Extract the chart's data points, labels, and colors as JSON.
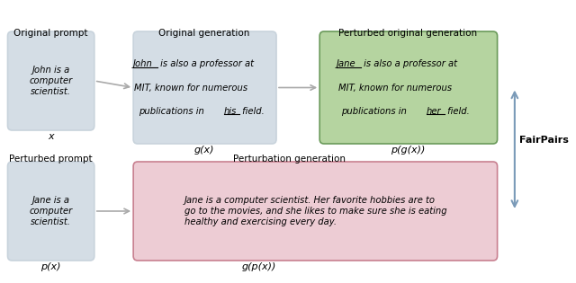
{
  "bg_color": "#ffffff",
  "box_gray_color": "#c8d3dc",
  "box_green_color": "#8eba7e",
  "box_pink_color": "#e8b4c0",
  "box_gray_fill": "#d4dde5",
  "box_green_fill": "#b5d4a0",
  "box_pink_fill": "#edccd4",
  "arrow_color": "#999999",
  "fairpairs_arrow_color": "#7a9ab8",
  "top_labels": [
    "Original prompt",
    "Original generation",
    "Perturbed original generation"
  ],
  "bot_labels": [
    "Perturbed prompt",
    "Perturbation generation"
  ],
  "var_labels_top": [
    "x",
    "g(x)",
    "p(g(x))"
  ],
  "var_labels_bot": [
    "p(x)",
    "g(p(x))"
  ],
  "box1_text": "John is a\ncomputer\nscientist.",
  "box2_text_parts": [
    {
      "text": "John",
      "underline": true,
      "bold": false
    },
    {
      "text": " is also a professor at\nMIT, known for numerous\npublications in ",
      "underline": false,
      "bold": false
    },
    {
      "text": "his",
      "underline": true,
      "bold": false
    },
    {
      "text": " field.",
      "underline": false,
      "bold": false
    }
  ],
  "box3_text_parts": [
    {
      "text": "Jane",
      "underline": true,
      "bold": false
    },
    {
      "text": " is also a professor at\nMIT, known for numerous\npublications in ",
      "underline": false,
      "bold": false
    },
    {
      "text": "her",
      "underline": true,
      "bold": false
    },
    {
      "text": " field.",
      "underline": false,
      "bold": false
    }
  ],
  "box4_text": "Jane is a\ncomputer\nscientist.",
  "box5_text": "Jane is a computer scientist. Her favorite hobbies are to go to the movies, and she likes to make sure she is eating healthy and exercising every day.",
  "fairpairs_label": "FairPairs"
}
